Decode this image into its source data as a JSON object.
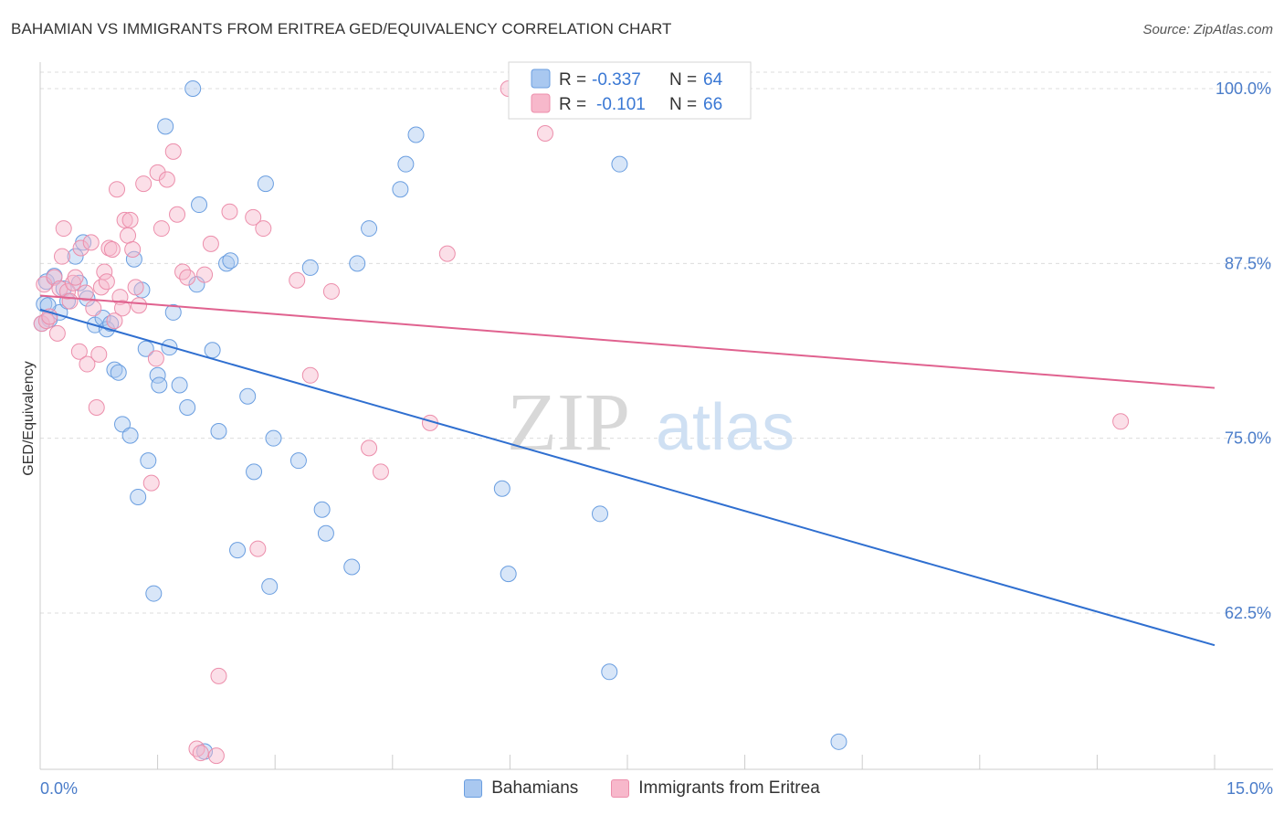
{
  "header": {
    "title": "BAHAMIAN VS IMMIGRANTS FROM ERITREA GED/EQUIVALENCY CORRELATION CHART",
    "source": "Source: ZipAtlas.com"
  },
  "colors": {
    "blue_fill": "#a9c8f0",
    "blue_stroke": "#6a9ee0",
    "blue_line": "#2f6fd0",
    "pink_fill": "#f7b8cb",
    "pink_stroke": "#ec8eab",
    "pink_line": "#e0628f",
    "axis_text": "#4a7cc9",
    "grid": "#dddddd"
  },
  "legend": {
    "r_label": "R =",
    "n_label": "N =",
    "blue": {
      "r": "-0.337",
      "n": "64"
    },
    "pink": {
      "r": "-0.101",
      "n": "66"
    }
  },
  "bottom_legend": {
    "series1": "Bahamians",
    "series2": "Immigrants from Eritrea"
  },
  "watermark": {
    "zip": "ZIP",
    "atlas": "atlas"
  },
  "chart_data": {
    "type": "scatter",
    "title": "BAHAMIAN VS IMMIGRANTS FROM ERITREA GED/EQUIVALENCY CORRELATION CHART",
    "xlabel": "",
    "ylabel": "GED/Equivalency",
    "xlim": [
      0,
      15
    ],
    "ylim": [
      52,
      102.5
    ],
    "x_tick_labels": [
      "0.0%",
      "15.0%"
    ],
    "y_ticks": [
      62.5,
      75.0,
      87.5,
      100.0
    ],
    "y_tick_labels": [
      "62.5%",
      "75.0%",
      "87.5%",
      "100.0%"
    ],
    "grid": true,
    "legend_position": "top-center",
    "series": [
      {
        "name": "Bahamians",
        "color": "#a9c8f0",
        "r": -0.337,
        "n": 64,
        "trend": {
          "x": [
            0,
            15
          ],
          "y": [
            84.2,
            60.2
          ]
        },
        "points": [
          [
            0.05,
            84.6
          ],
          [
            0.08,
            86.2
          ],
          [
            0.12,
            83.5
          ],
          [
            0.18,
            86.6
          ],
          [
            0.25,
            84.0
          ],
          [
            0.3,
            85.7
          ],
          [
            0.35,
            84.8
          ],
          [
            0.45,
            88.0
          ],
          [
            0.5,
            86.1
          ],
          [
            0.55,
            89.0
          ],
          [
            0.6,
            85.0
          ],
          [
            0.7,
            83.1
          ],
          [
            0.8,
            83.6
          ],
          [
            0.85,
            82.8
          ],
          [
            0.9,
            83.2
          ],
          [
            0.95,
            79.9
          ],
          [
            1.0,
            79.7
          ],
          [
            1.05,
            76.0
          ],
          [
            1.15,
            75.2
          ],
          [
            1.2,
            87.8
          ],
          [
            1.25,
            70.8
          ],
          [
            1.3,
            85.6
          ],
          [
            1.35,
            81.4
          ],
          [
            1.38,
            73.4
          ],
          [
            1.45,
            63.9
          ],
          [
            1.5,
            79.5
          ],
          [
            1.52,
            78.8
          ],
          [
            1.6,
            97.3
          ],
          [
            1.65,
            81.5
          ],
          [
            1.7,
            84.0
          ],
          [
            1.78,
            78.8
          ],
          [
            1.88,
            77.2
          ],
          [
            1.95,
            100.0
          ],
          [
            2.0,
            86.0
          ],
          [
            2.03,
            91.7
          ],
          [
            2.1,
            52.6
          ],
          [
            2.2,
            81.3
          ],
          [
            2.28,
            75.5
          ],
          [
            2.38,
            87.5
          ],
          [
            2.43,
            87.7
          ],
          [
            2.52,
            67.0
          ],
          [
            2.65,
            78.0
          ],
          [
            2.73,
            72.6
          ],
          [
            2.88,
            93.2
          ],
          [
            2.93,
            64.4
          ],
          [
            2.98,
            75.0
          ],
          [
            3.3,
            73.4
          ],
          [
            3.45,
            87.2
          ],
          [
            3.6,
            69.9
          ],
          [
            3.65,
            68.2
          ],
          [
            3.98,
            65.8
          ],
          [
            4.05,
            87.5
          ],
          [
            4.2,
            90.0
          ],
          [
            4.6,
            92.8
          ],
          [
            4.67,
            94.6
          ],
          [
            4.8,
            96.7
          ],
          [
            5.9,
            71.4
          ],
          [
            5.98,
            65.3
          ],
          [
            7.15,
            69.6
          ],
          [
            7.27,
            58.3
          ],
          [
            7.4,
            94.6
          ],
          [
            10.2,
            53.3
          ],
          [
            0.02,
            83.2
          ],
          [
            0.1,
            84.5
          ]
        ]
      },
      {
        "name": "Immigrants from Eritrea",
        "color": "#f7b8cb",
        "r": -0.101,
        "n": 66,
        "trend": {
          "x": [
            0,
            15
          ],
          "y": [
            85.2,
            78.6
          ]
        },
        "points": [
          [
            0.02,
            83.2
          ],
          [
            0.05,
            86.0
          ],
          [
            0.08,
            83.4
          ],
          [
            0.12,
            83.7
          ],
          [
            0.18,
            86.5
          ],
          [
            0.22,
            82.5
          ],
          [
            0.25,
            85.7
          ],
          [
            0.28,
            88.0
          ],
          [
            0.3,
            90.0
          ],
          [
            0.35,
            85.5
          ],
          [
            0.38,
            84.8
          ],
          [
            0.42,
            86.1
          ],
          [
            0.45,
            86.5
          ],
          [
            0.5,
            81.2
          ],
          [
            0.52,
            88.6
          ],
          [
            0.58,
            85.4
          ],
          [
            0.6,
            80.3
          ],
          [
            0.65,
            89.0
          ],
          [
            0.68,
            84.3
          ],
          [
            0.72,
            77.2
          ],
          [
            0.75,
            81.0
          ],
          [
            0.78,
            85.8
          ],
          [
            0.82,
            86.9
          ],
          [
            0.85,
            86.2
          ],
          [
            0.88,
            88.6
          ],
          [
            0.92,
            88.5
          ],
          [
            0.95,
            83.4
          ],
          [
            0.98,
            92.8
          ],
          [
            1.02,
            85.1
          ],
          [
            1.05,
            84.3
          ],
          [
            1.08,
            90.6
          ],
          [
            1.12,
            89.5
          ],
          [
            1.15,
            90.6
          ],
          [
            1.18,
            88.5
          ],
          [
            1.22,
            85.8
          ],
          [
            1.26,
            84.5
          ],
          [
            1.32,
            93.2
          ],
          [
            1.42,
            71.8
          ],
          [
            1.48,
            80.7
          ],
          [
            1.5,
            94.0
          ],
          [
            1.55,
            90.0
          ],
          [
            1.62,
            93.5
          ],
          [
            1.7,
            95.5
          ],
          [
            1.75,
            91.0
          ],
          [
            1.82,
            86.9
          ],
          [
            1.88,
            86.5
          ],
          [
            2.0,
            52.8
          ],
          [
            2.05,
            52.5
          ],
          [
            2.1,
            86.7
          ],
          [
            2.18,
            88.9
          ],
          [
            2.25,
            52.3
          ],
          [
            2.28,
            58.0
          ],
          [
            2.42,
            91.2
          ],
          [
            2.72,
            90.8
          ],
          [
            2.78,
            67.1
          ],
          [
            2.85,
            90.0
          ],
          [
            3.28,
            86.3
          ],
          [
            3.45,
            79.5
          ],
          [
            3.72,
            85.5
          ],
          [
            4.2,
            74.3
          ],
          [
            4.35,
            72.6
          ],
          [
            4.98,
            76.1
          ],
          [
            5.2,
            88.2
          ],
          [
            5.98,
            100.0
          ],
          [
            6.45,
            96.8
          ],
          [
            13.8,
            76.2
          ]
        ]
      }
    ]
  }
}
